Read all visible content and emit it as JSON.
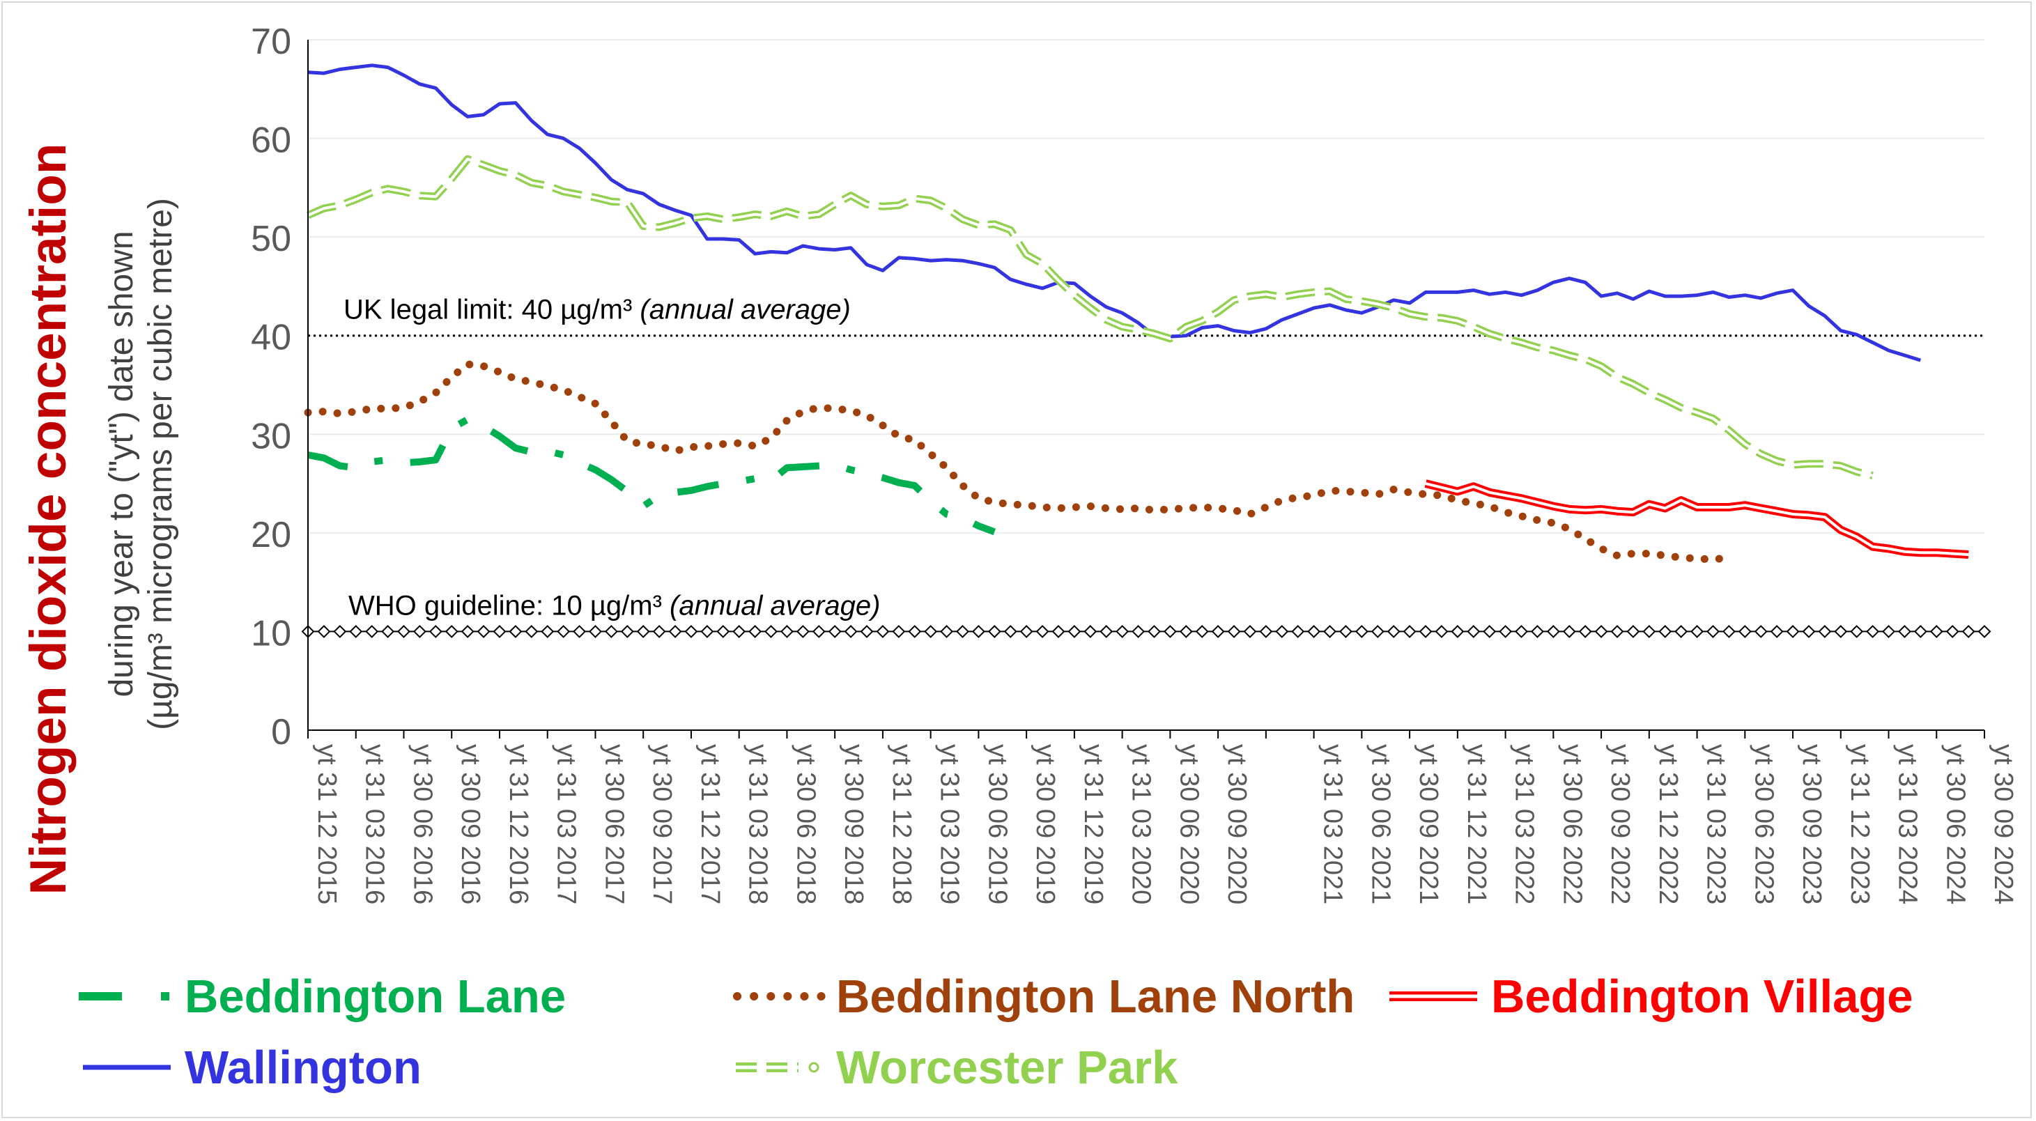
{
  "chart_data": {
    "type": "line",
    "ylabel_main": "Nitrogen dioxide concentration",
    "ylabel_sub1": "during year to (\"yt\") date shown",
    "ylabel_sub2": "(µg/m³ micrograms per cubic metre)",
    "ylim": [
      0,
      70
    ],
    "yticks": [
      0,
      10,
      20,
      30,
      40,
      50,
      60,
      70
    ],
    "grid": true,
    "legend_position": "bottom",
    "x_tick_labels": [
      "yt 31 12 2015",
      "yt 31 03 2016",
      "yt 30 06 2016",
      "yt 30 09 2016",
      "yt 31 12 2016",
      "yt 31 03 2017",
      "yt 30 06 2017",
      "yt 30 09 2017",
      "yt 31 12 2017",
      "yt 31 03 2018",
      "yt 30 06 2018",
      "yt 30 09 2018",
      "yt 31 12 2018",
      "yt 31 03 2019",
      "yt 30 06 2019",
      "yt 30 09 2019",
      "yt 31 12 2019",
      "yt 31 03 2020",
      "yt 30 06 2020",
      "yt 30 09 2020",
      "yt 31 03 2021",
      "yt 30 06 2021",
      "yt 30 09 2021",
      "yt 31 12 2021",
      "yt 31 03 2022",
      "yt 30 06 2022",
      "yt 30 09 2022",
      "yt 31 12 2022",
      "yt 31 03 2023",
      "yt 30 06 2023",
      "yt 30 09 2023",
      "yt 31 12 2023",
      "yt 31 03 2024",
      "yt 30 06 2024",
      "yt 30 09 2024"
    ],
    "x_tick_months": [
      0,
      3,
      6,
      9,
      12,
      15,
      18,
      21,
      24,
      27,
      30,
      33,
      36,
      39,
      42,
      45,
      48,
      51,
      54,
      57,
      63,
      66,
      69,
      72,
      75,
      78,
      81,
      84,
      87,
      90,
      93,
      96,
      99,
      102,
      105
    ],
    "reference_lines": [
      {
        "value": 40,
        "label": "UK legal limit:  40 µg/m³ ",
        "label_italic": "(annual average)",
        "style": "dotted",
        "color": "#000000"
      },
      {
        "value": 10,
        "label": "WHO guideline: 10 µg/m³ ",
        "label_italic": "(annual average)",
        "style": "diamond-markers",
        "color": "#000000"
      }
    ],
    "series": [
      {
        "name": "Wallington",
        "color": "#3333e0",
        "style": "solid",
        "start_month": 0,
        "values": [
          66.7,
          66.6,
          67,
          67.2,
          67.4,
          67.2,
          66.4,
          65.5,
          65.1,
          63.4,
          62.2,
          62.4,
          63.5,
          63.6,
          61.8,
          60.4,
          60,
          59,
          57.5,
          55.8,
          54.8,
          54.4,
          53.3,
          52.7,
          52.2,
          49.8,
          49.8,
          49.7,
          48.3,
          48.5,
          48.4,
          49.1,
          48.8,
          48.7,
          48.9,
          47.2,
          46.6,
          47.9,
          47.8,
          47.6,
          47.7,
          47.6,
          47.3,
          46.9,
          45.7,
          45.2,
          44.8,
          45.4,
          45.3,
          44,
          42.9,
          42.3,
          41.3,
          40,
          39.9,
          40,
          40.8,
          41,
          40.5,
          40.3,
          40.7,
          41.6,
          42.2,
          42.8,
          43.1,
          42.6,
          42.3,
          42.9,
          43.6,
          43.3,
          44.4,
          44.4,
          44.4,
          44.6,
          44.2,
          44.4,
          44.1,
          44.6,
          45.4,
          45.8,
          45.4,
          44,
          44.3,
          43.7,
          44.5,
          44,
          44,
          44.1,
          44.4,
          43.9,
          44.1,
          43.8,
          44.3,
          44.6,
          43,
          42,
          40.5,
          40.1,
          39.3,
          38.5,
          38,
          37.5
        ]
      },
      {
        "name": "Worcester Park",
        "color": "#92d050",
        "style": "dash-dot-circle",
        "start_month": 0,
        "values": [
          52.2,
          52.9,
          53.2,
          53.8,
          54.5,
          54.9,
          54.6,
          54.2,
          54.1,
          55.9,
          57.9,
          57.3,
          56.7,
          56.3,
          55.5,
          55.2,
          54.6,
          54.3,
          54,
          53.6,
          53.5,
          51.1,
          51,
          51.4,
          51.9,
          52.1,
          51.8,
          52,
          52.3,
          52.1,
          52.6,
          52.1,
          52.3,
          53.3,
          54.2,
          53.3,
          53.1,
          53.2,
          53.9,
          53.7,
          52.9,
          51.8,
          51.2,
          51.3,
          50.7,
          48.2,
          47.3,
          45.6,
          44.1,
          42.8,
          41.6,
          40.9,
          40.6,
          40.2,
          39.7,
          40.9,
          41.5,
          42.4,
          43.6,
          44,
          44.2,
          43.9,
          44.2,
          44.4,
          44.5,
          43.7,
          43.5,
          43.2,
          42.8,
          42.2,
          41.9,
          41.8,
          41.5,
          40.9,
          40.2,
          39.7,
          39.3,
          38.8,
          38.5,
          38,
          37.6,
          36.9,
          35.8,
          35.1,
          34.2,
          33.5,
          32.7,
          32.2,
          31.6,
          30.4,
          29,
          28,
          27.3,
          26.9,
          27,
          27,
          26.8,
          26.2,
          25.8
        ]
      },
      {
        "name": "Beddington Lane North",
        "color": "#a0400a",
        "style": "dotted",
        "start_month": 0,
        "values": [
          32.2,
          32.3,
          32.1,
          32.3,
          32.6,
          32.6,
          32.7,
          33.3,
          34.2,
          35.8,
          37.1,
          36.9,
          36.3,
          35.6,
          35.3,
          34.9,
          34.5,
          33.8,
          33.1,
          31.3,
          29.3,
          29,
          28.8,
          28.3,
          28.7,
          28.8,
          29,
          29.1,
          28.8,
          29.6,
          31.4,
          32.3,
          32.7,
          32.6,
          32.4,
          31.9,
          30.9,
          29.8,
          29.4,
          28,
          26.6,
          24.8,
          23.5,
          23.1,
          22.9,
          22.8,
          22.6,
          22.5,
          22.6,
          22.7,
          22.5,
          22.4,
          22.5,
          22.3,
          22.4,
          22.5,
          22.6,
          22.5,
          22.3,
          21.9,
          22.6,
          23.3,
          23.6,
          23.8,
          24.3,
          24.2,
          24.1,
          23.9,
          24.4,
          24.1,
          23.9,
          23.8,
          23.3,
          23,
          22.7,
          22.1,
          21.7,
          21.3,
          21,
          20.4,
          19.4,
          18.4,
          17.7,
          17.9,
          17.9,
          17.7,
          17.5,
          17.4,
          17.3,
          17.5
        ]
      },
      {
        "name": "Beddington Lane",
        "color": "#00b050",
        "style": "dash-dot",
        "start_month": 0,
        "values": [
          27.9,
          27.6,
          26.8,
          26.6,
          27.2,
          27.4,
          27.1,
          27.2,
          27.4,
          30.6,
          31.5,
          30.8,
          29.8,
          28.6,
          28.2,
          28.3,
          27.9,
          27.1,
          26.4,
          25.4,
          24.2,
          22.7,
          23.8,
          24.1,
          24.3,
          24.7,
          25,
          25.2,
          25.5,
          25.3,
          26.6,
          26.7,
          26.8,
          26.9,
          26.4,
          26,
          25.6,
          25.1,
          24.8,
          23.2,
          21.9,
          21.5,
          20.7,
          20.1
        ]
      },
      {
        "name": "Beddington Village",
        "color": "#ff0000",
        "style": "double",
        "start_month": 70,
        "values": [
          25,
          24.6,
          24.2,
          24.7,
          24.1,
          23.8,
          23.5,
          23.1,
          22.7,
          22.4,
          22.3,
          22.4,
          22.2,
          22.1,
          22.9,
          22.5,
          23.3,
          22.6,
          22.6,
          22.6,
          22.8,
          22.5,
          22.2,
          21.9,
          21.8,
          21.6,
          20.3,
          19.6,
          18.6,
          18.4,
          18.1,
          18,
          18,
          17.9,
          17.8
        ]
      }
    ]
  },
  "legend": [
    {
      "name": "Beddington Lane",
      "color": "#00b050"
    },
    {
      "name": "Beddington Lane North",
      "color": "#a0400a"
    },
    {
      "name": "Beddington Village",
      "color": "#ff0000"
    },
    {
      "name": "Wallington",
      "color": "#3333e0"
    },
    {
      "name": "Worcester Park",
      "color": "#92d050"
    }
  ]
}
